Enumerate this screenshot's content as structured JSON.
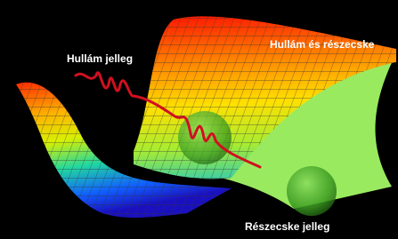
{
  "labels": {
    "wave": "Hullám jelleg",
    "both": "Hullám és részecske",
    "particle": "Részecske jelleg"
  }
}
